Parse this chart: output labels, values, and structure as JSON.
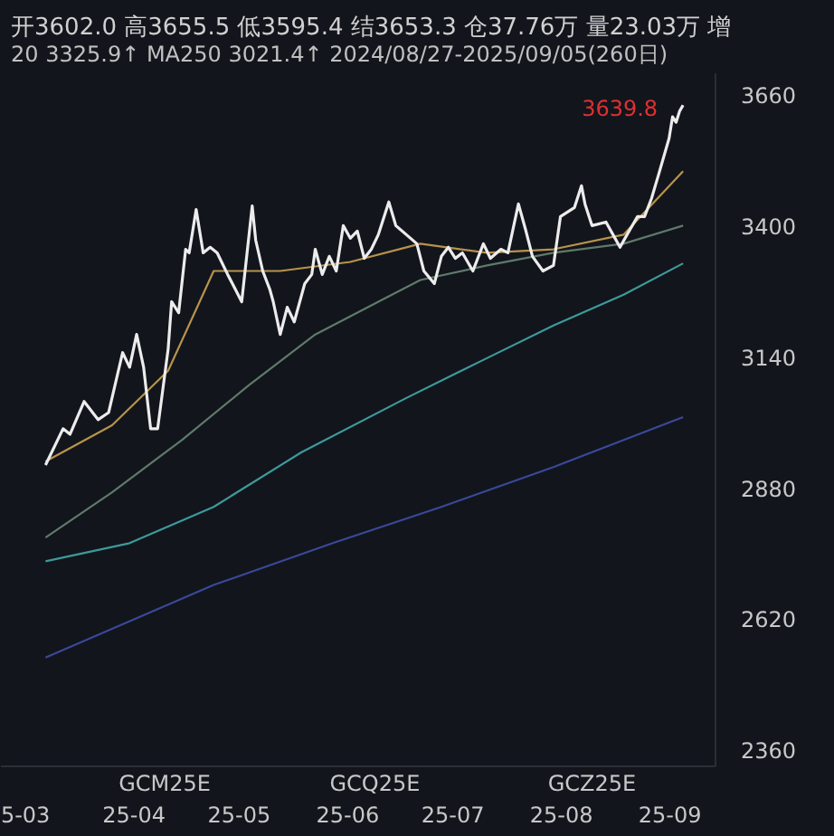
{
  "chart_data": {
    "type": "line",
    "title": "开3602.0 高3655.5 低3595.4 结3653.3 仓37.76万 量23.03万 增",
    "subtitle": "20 3325.9↑ MA250 3021.4↑ 2024/08/27-2025/09/05(260日)",
    "xlim": [
      "2025-02-22",
      "2025-09-14"
    ],
    "x2lim": [
      "2025-02-22",
      "2025-09-14"
    ],
    "x2ticks": [
      {
        "value": "2025-04-10",
        "label": "GCM25E"
      },
      {
        "value": "2025-06-09",
        "label": "GCQ25E"
      },
      {
        "value": "2025-08-10",
        "label": "GCZ25E"
      }
    ],
    "xticks": [
      {
        "value": "2025-03-01",
        "label": "5-03"
      },
      {
        "value": "2025-04-01",
        "label": "25-04"
      },
      {
        "value": "2025-05-01",
        "label": "25-05"
      },
      {
        "value": "2025-06-01",
        "label": "25-06"
      },
      {
        "value": "2025-07-01",
        "label": "25-07"
      },
      {
        "value": "2025-08-01",
        "label": "25-08"
      },
      {
        "value": "2025-09-01",
        "label": "25-09"
      }
    ],
    "ylim": [
      2330,
      3705
    ],
    "yticks": [
      2360,
      2620,
      2880,
      3140,
      3400,
      3660
    ],
    "grid": false,
    "annotations": [
      {
        "text": "3639.8",
        "x": "2025-09-05",
        "y": 3639.8
      }
    ],
    "series": [
      {
        "color": "#3a4898",
        "x": [
          "2025-03-07",
          "2025-04-24",
          "2025-05-28",
          "2025-06-28",
          "2025-07-30",
          "2025-09-05"
        ],
        "values": [
          2544,
          2688,
          2771,
          2843,
          2922,
          3021
        ]
      },
      {
        "color": "#3e9a9a",
        "x": [
          "2025-03-07",
          "2025-03-31",
          "2025-04-24",
          "2025-05-19",
          "2025-06-18",
          "2025-07-11",
          "2025-07-30",
          "2025-08-19",
          "2025-09-05"
        ],
        "values": [
          2735,
          2771,
          2843,
          2951,
          3059,
          3138,
          3203,
          3264,
          3326
        ]
      },
      {
        "color": "#5f7a6a",
        "x": [
          "2025-03-07",
          "2025-03-26",
          "2025-04-15",
          "2025-05-04",
          "2025-05-23",
          "2025-06-12",
          "2025-06-22",
          "2025-07-11",
          "2025-07-30",
          "2025-08-19",
          "2025-09-05"
        ],
        "values": [
          2782,
          2872,
          2976,
          3084,
          3185,
          3257,
          3293,
          3322,
          3347,
          3365,
          3401
        ]
      },
      {
        "color": "#b8934a",
        "x": [
          "2025-03-07",
          "2025-03-26",
          "2025-04-11",
          "2025-04-24",
          "2025-05-13",
          "2025-06-02",
          "2025-06-22",
          "2025-07-11",
          "2025-07-30",
          "2025-08-19",
          "2025-09-05"
        ],
        "values": [
          2933,
          3005,
          3113,
          3311,
          3311,
          3329,
          3365,
          3347,
          3354,
          3383,
          3509
        ]
      },
      {
        "color": "#ececec",
        "x": [
          "2025-03-07",
          "2025-03-12",
          "2025-03-14",
          "2025-03-18",
          "2025-03-22",
          "2025-03-25",
          "2025-03-29",
          "2025-03-31",
          "2025-04-02",
          "2025-04-04",
          "2025-04-06",
          "2025-04-08",
          "2025-04-11",
          "2025-04-12",
          "2025-04-14",
          "2025-04-16",
          "2025-04-17",
          "2025-04-19",
          "2025-04-21",
          "2025-04-23",
          "2025-04-25",
          "2025-04-28",
          "2025-05-02",
          "2025-05-05",
          "2025-05-06",
          "2025-05-08",
          "2025-05-10",
          "2025-05-11",
          "2025-05-13",
          "2025-05-15",
          "2025-05-17",
          "2025-05-20",
          "2025-05-22",
          "2025-05-23",
          "2025-05-25",
          "2025-05-27",
          "2025-05-29",
          "2025-05-31",
          "2025-06-02",
          "2025-06-04",
          "2025-06-06",
          "2025-06-08",
          "2025-06-10",
          "2025-06-13",
          "2025-06-15",
          "2025-06-18",
          "2025-06-21",
          "2025-06-23",
          "2025-06-26",
          "2025-06-28",
          "2025-06-30",
          "2025-07-02",
          "2025-07-04",
          "2025-07-07",
          "2025-07-10",
          "2025-07-12",
          "2025-07-15",
          "2025-07-17",
          "2025-07-20",
          "2025-07-22",
          "2025-07-24",
          "2025-07-27",
          "2025-07-30",
          "2025-08-01",
          "2025-08-05",
          "2025-08-07",
          "2025-08-08",
          "2025-08-10",
          "2025-08-14",
          "2025-08-16",
          "2025-08-18",
          "2025-08-20",
          "2025-08-23",
          "2025-08-25",
          "2025-08-27",
          "2025-08-29",
          "2025-09-01",
          "2025-09-02",
          "2025-09-03",
          "2025-09-04",
          "2025-09-05"
        ],
        "values": [
          2926,
          2998,
          2987,
          3052,
          3016,
          3030,
          3149,
          3120,
          3185,
          3120,
          2998,
          2998,
          3156,
          3250,
          3228,
          3354,
          3347,
          3433,
          3347,
          3358,
          3347,
          3304,
          3250,
          3440,
          3372,
          3311,
          3275,
          3250,
          3185,
          3239,
          3210,
          3286,
          3304,
          3354,
          3304,
          3340,
          3311,
          3401,
          3376,
          3390,
          3336,
          3354,
          3383,
          3448,
          3401,
          3383,
          3365,
          3311,
          3286,
          3340,
          3358,
          3336,
          3347,
          3311,
          3365,
          3336,
          3354,
          3347,
          3444,
          3394,
          3340,
          3311,
          3322,
          3419,
          3437,
          3480,
          3444,
          3401,
          3408,
          3383,
          3358,
          3383,
          3419,
          3419,
          3455,
          3502,
          3574,
          3617,
          3606,
          3628,
          3640
        ]
      }
    ]
  }
}
